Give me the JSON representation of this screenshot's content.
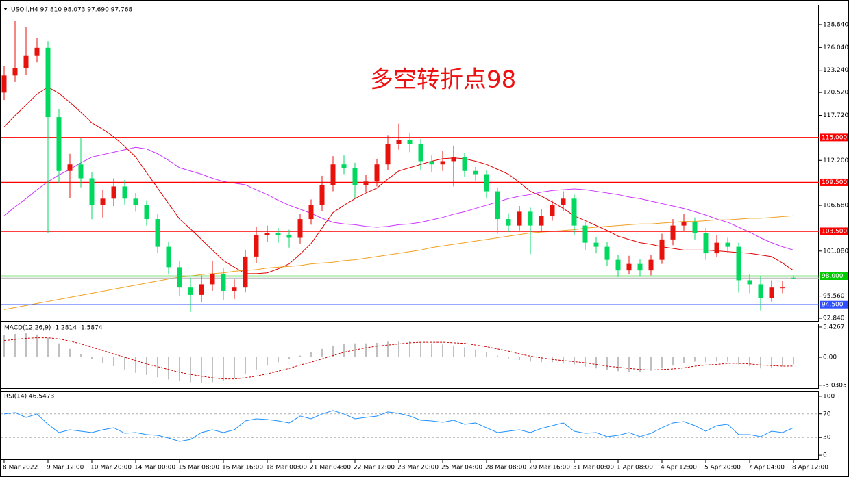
{
  "chart_data": [
    {
      "type": "candlestick",
      "title": "USOil,H4 97.810 98.073 97.690 97.768",
      "annotation": "多空转折点98",
      "categories": [
        "8 Mar 2022",
        null,
        null,
        null,
        "9 Mar 12:00",
        null,
        null,
        null,
        "10 Mar 20:00",
        null,
        null,
        null,
        "14 Mar 00:00",
        null,
        null,
        null,
        "15 Mar 08:00",
        null,
        null,
        null,
        "16 Mar 16:00",
        null,
        null,
        null,
        "18 Mar 00:00",
        null,
        null,
        null,
        "21 Mar 04:00",
        null,
        null,
        null,
        "22 Mar 12:00",
        null,
        null,
        null,
        "23 Mar 20:00",
        null,
        null,
        null,
        "25 Mar 04:00",
        null,
        null,
        null,
        "28 Mar 08:00",
        null,
        null,
        null,
        "29 Mar 16:00",
        null,
        null,
        null,
        "31 Mar 00:00",
        null,
        null,
        null,
        "1 Apr 08:00",
        null,
        null,
        null,
        "4 Apr 12:00",
        null,
        null,
        null,
        "5 Apr 20:00",
        null,
        null,
        null,
        "7 Apr 04:00",
        null,
        null,
        null,
        "8 Apr 12:00"
      ],
      "open": [
        120.5,
        122.6,
        123.5,
        125.0,
        126.0,
        117.5,
        110.9,
        111.7,
        110.0,
        106.7,
        107.5,
        109.0,
        107.5,
        106.7,
        105.0,
        101.6,
        99.1,
        96.6,
        95.7,
        97.0,
        98.3,
        96.2,
        96.6,
        100.4,
        103.0,
        103.3,
        103.0,
        102.7,
        105.0,
        106.7,
        109.2,
        111.7,
        111.3,
        109.2,
        109.6,
        111.7,
        114.2,
        114.7,
        114.2,
        112.1,
        111.7,
        112.1,
        112.6,
        110.9,
        110.5,
        108.4,
        105.0,
        104.2,
        105.9,
        104.2,
        105.4,
        106.7,
        107.5,
        104.2,
        102.1,
        101.6,
        100.0,
        98.7,
        99.5,
        98.7,
        100.0,
        102.5,
        104.2,
        104.6,
        103.3,
        100.8,
        102.1,
        101.6,
        97.5,
        97.0,
        95.3,
        96.6,
        97.81
      ],
      "high": [
        123.8,
        129.3,
        128.5,
        127.2,
        126.8,
        118.5,
        113.0,
        115.0,
        110.8,
        108.6,
        110.0,
        109.8,
        108.2,
        107.3,
        105.6,
        102.2,
        99.8,
        97.8,
        98.1,
        99.9,
        99.0,
        97.6,
        101.2,
        104.0,
        104.2,
        103.9,
        103.7,
        105.6,
        107.4,
        110.3,
        112.7,
        112.8,
        111.9,
        110.4,
        112.4,
        115.3,
        116.7,
        115.6,
        114.8,
        112.8,
        113.4,
        114.0,
        113.1,
        111.4,
        111.0,
        108.9,
        105.7,
        106.6,
        106.4,
        106.2,
        107.3,
        108.4,
        108.0,
        104.6,
        102.8,
        102.2,
        100.6,
        100.5,
        100.1,
        100.6,
        103.2,
        105.0,
        105.6,
        105.2,
        103.9,
        103.0,
        102.7,
        102.1,
        98.3,
        98.0,
        97.5,
        97.4,
        98.073
      ],
      "low": [
        119.6,
        121.8,
        122.7,
        124.2,
        103.3,
        109.4,
        107.6,
        108.9,
        105.0,
        105.2,
        106.6,
        106.8,
        105.9,
        104.2,
        100.8,
        98.2,
        95.6,
        93.6,
        94.8,
        96.2,
        95.1,
        95.2,
        96.0,
        99.6,
        102.2,
        102.1,
        101.5,
        102.0,
        104.3,
        106.0,
        108.4,
        110.5,
        107.5,
        108.3,
        109.0,
        111.0,
        113.5,
        113.2,
        111.0,
        110.7,
        110.9,
        109.0,
        110.2,
        109.7,
        107.5,
        103.2,
        103.4,
        103.6,
        100.7,
        103.5,
        104.8,
        106.0,
        103.0,
        101.2,
        100.8,
        99.3,
        97.9,
        98.2,
        98.0,
        98.1,
        99.5,
        101.8,
        103.6,
        102.5,
        100.0,
        100.3,
        100.9,
        96.0,
        95.9,
        93.8,
        94.9,
        95.9,
        97.69
      ],
      "close": [
        122.6,
        123.5,
        125.0,
        126.0,
        117.5,
        110.9,
        111.7,
        110.0,
        106.7,
        107.5,
        109.0,
        107.5,
        106.7,
        105.0,
        101.6,
        99.1,
        96.6,
        95.7,
        97.0,
        98.3,
        96.2,
        96.6,
        100.4,
        103.0,
        103.3,
        103.0,
        102.7,
        105.0,
        106.7,
        109.2,
        111.7,
        111.3,
        109.2,
        109.6,
        111.7,
        114.2,
        114.7,
        114.2,
        112.1,
        111.7,
        112.1,
        112.6,
        110.9,
        110.5,
        108.4,
        105.0,
        104.2,
        105.9,
        104.2,
        105.4,
        106.7,
        107.5,
        104.2,
        102.1,
        101.6,
        100.0,
        98.7,
        99.5,
        98.7,
        100.0,
        102.5,
        104.2,
        104.6,
        103.3,
        100.8,
        102.1,
        101.6,
        97.5,
        97.0,
        95.3,
        96.6,
        96.6,
        97.768
      ],
      "up_color": "#e8120c",
      "down_color": "#00d860",
      "price_line_color": "#b0b0b0",
      "series": [
        {
          "color": "#e00000",
          "values": [
            116.3,
            117.7,
            119.0,
            120.3,
            121.2,
            120.4,
            119.3,
            118.1,
            116.8,
            116.0,
            115.1,
            113.9,
            112.6,
            110.7,
            108.8,
            106.9,
            105.0,
            103.8,
            102.5,
            101.2,
            99.9,
            99.1,
            98.3,
            98.3,
            98.4,
            98.9,
            99.5,
            100.7,
            102.0,
            103.9,
            105.8,
            106.7,
            107.5,
            108.2,
            108.8,
            109.9,
            110.9,
            111.3,
            111.7,
            112.1,
            112.4,
            112.5,
            112.4,
            112.1,
            111.7,
            111.1,
            110.5,
            109.5,
            108.4,
            107.8,
            107.1,
            106.3,
            105.4,
            104.8,
            104.2,
            103.6,
            102.9,
            102.5,
            102.1,
            101.9,
            101.6,
            101.4,
            101.2,
            101.2,
            101.2,
            101.1,
            101.0,
            100.9,
            100.8,
            100.6,
            100.4,
            99.6,
            98.7
          ]
        },
        {
          "color": "#cc33ff",
          "values": [
            105.4,
            106.5,
            107.5,
            108.6,
            109.6,
            110.4,
            111.1,
            111.9,
            112.6,
            112.9,
            113.2,
            113.5,
            113.8,
            113.6,
            113.0,
            112.2,
            111.3,
            110.9,
            110.5,
            110.0,
            109.6,
            109.4,
            109.2,
            108.6,
            108.0,
            107.3,
            106.7,
            106.2,
            105.7,
            105.1,
            104.6,
            104.4,
            104.3,
            104.1,
            104.0,
            104.1,
            104.3,
            104.4,
            104.6,
            104.9,
            105.2,
            105.6,
            105.9,
            106.3,
            106.7,
            107.1,
            107.5,
            107.8,
            108.0,
            108.3,
            108.5,
            108.6,
            108.7,
            108.6,
            108.4,
            108.2,
            108.0,
            107.7,
            107.5,
            107.2,
            106.9,
            106.6,
            106.3,
            105.9,
            105.5,
            105.0,
            104.6,
            104.0,
            103.4,
            102.7,
            102.1,
            101.6,
            101.2
          ]
        },
        {
          "color": "#f0a020",
          "values": [
            93.9,
            94.15,
            94.4,
            94.65,
            94.9,
            95.15,
            95.4,
            95.65,
            95.9,
            96.15,
            96.4,
            96.65,
            96.9,
            97.15,
            97.4,
            97.65,
            97.9,
            98.0,
            98.2,
            98.3,
            98.4,
            98.6,
            98.7,
            98.8,
            99.0,
            99.1,
            99.2,
            99.3,
            99.5,
            99.6,
            99.7,
            99.9,
            100.0,
            100.2,
            100.4,
            100.6,
            100.8,
            101.0,
            101.2,
            101.5,
            101.7,
            101.9,
            102.1,
            102.3,
            102.5,
            102.7,
            102.9,
            103.1,
            103.3,
            103.4,
            103.5,
            103.6,
            103.7,
            103.9,
            104.0,
            104.1,
            104.2,
            104.3,
            104.4,
            104.4,
            104.5,
            104.6,
            104.7,
            104.7,
            104.8,
            104.9,
            104.9,
            105.0,
            105.1,
            105.1,
            105.2,
            105.3,
            105.4
          ]
        }
      ],
      "levels": [
        {
          "value": 115.0,
          "label": "115.000",
          "color": "#ff0000"
        },
        {
          "value": 109.5,
          "label": "109.500",
          "color": "#ff0000"
        },
        {
          "value": 103.5,
          "label": "103.500",
          "color": "#ff0000"
        },
        {
          "value": 98.0,
          "label": "98.000",
          "color": "#00cc00"
        },
        {
          "value": 94.5,
          "label": "94.500",
          "color": "#3050ff"
        }
      ],
      "ylim": [
        92.42,
        131.27
      ],
      "yticks": [
        {
          "value": 128.84,
          "label": "128.840"
        },
        {
          "value": 126.04,
          "label": "126.040"
        },
        {
          "value": 123.24,
          "label": "123.240"
        },
        {
          "value": 120.52,
          "label": "120.520"
        },
        {
          "value": 117.72,
          "label": "117.720"
        },
        {
          "value": 112.2,
          "label": "112.200"
        },
        {
          "value": 106.68,
          "label": "106.680"
        },
        {
          "value": 101.08,
          "label": "101.080"
        },
        {
          "value": 95.56,
          "label": "95.560"
        },
        {
          "value": 92.84,
          "label": "92.840"
        }
      ]
    },
    {
      "type": "macd",
      "title": "MACD(12,26,9) -1.2814 -1.5874",
      "series": [
        {
          "color": "#c0c0c0",
          "values": [
            4.0,
            4.2,
            4.3,
            4.1,
            3.5,
            2.5,
            1.5,
            0.6,
            -0.3,
            -1.0,
            -1.6,
            -2.2,
            -2.8,
            -3.2,
            -3.6,
            -4.0,
            -4.3,
            -4.5,
            -4.6,
            -4.5,
            -4.3,
            -3.8,
            -3.0,
            -2.2,
            -1.5,
            -0.9,
            -0.3,
            0.3,
            0.9,
            1.5,
            2.1,
            2.4,
            2.5,
            2.5,
            2.6,
            2.8,
            2.9,
            2.9,
            2.7,
            2.5,
            2.3,
            2.1,
            1.8,
            1.4,
            0.9,
            0.3,
            -0.2,
            -0.5,
            -0.8,
            -0.9,
            -0.9,
            -1.0,
            -1.3,
            -1.7,
            -2.0,
            -2.3,
            -2.5,
            -2.6,
            -2.6,
            -2.4,
            -2.0,
            -1.5,
            -1.0,
            -0.8,
            -0.9,
            -0.8,
            -0.8,
            -1.3,
            -1.6,
            -2.0,
            -1.9,
            -1.6,
            -1.2814
          ]
        },
        {
          "color": "#cc0000",
          "values": [
            3.0,
            3.2,
            3.4,
            3.5,
            3.5,
            3.3,
            2.9,
            2.4,
            1.8,
            1.2,
            0.6,
            0.0,
            -0.6,
            -1.2,
            -1.7,
            -2.2,
            -2.7,
            -3.1,
            -3.4,
            -3.7,
            -3.9,
            -3.9,
            -3.7,
            -3.4,
            -3.0,
            -2.5,
            -2.0,
            -1.4,
            -0.9,
            -0.3,
            0.3,
            0.9,
            1.3,
            1.7,
            2.0,
            2.2,
            2.4,
            2.6,
            2.7,
            2.7,
            2.7,
            2.6,
            2.5,
            2.2,
            1.9,
            1.5,
            1.1,
            0.6,
            0.2,
            -0.1,
            -0.4,
            -0.6,
            -0.8,
            -1.0,
            -1.3,
            -1.6,
            -1.8,
            -2.0,
            -2.2,
            -2.3,
            -2.2,
            -2.1,
            -1.9,
            -1.6,
            -1.4,
            -1.3,
            -1.1,
            -1.1,
            -1.2,
            -1.4,
            -1.5,
            -1.6,
            -1.5874
          ]
        }
      ],
      "ylim": [
        -5.67,
        6.04
      ],
      "yticks": [
        5.4267,
        {
          "value": 0,
          "label": "0.00"
        },
        -5.0305
      ]
    },
    {
      "type": "line",
      "title": "RSI(14) 46.5473",
      "color": "#1e90ff",
      "values": [
        69.8,
        72.1,
        64.0,
        69.8,
        52.3,
        38.4,
        43.0,
        40.7,
        38.4,
        43.0,
        46.5,
        37.2,
        38.4,
        34.9,
        33.7,
        29.1,
        23.3,
        26.7,
        38.4,
        43.0,
        38.4,
        43.0,
        58.1,
        61.6,
        60.5,
        58.1,
        54.7,
        66.3,
        61.6,
        69.8,
        75.6,
        69.8,
        61.6,
        64.0,
        66.3,
        73.3,
        70.9,
        66.3,
        59.3,
        58.1,
        55.8,
        59.3,
        52.3,
        54.7,
        46.5,
        38.4,
        40.7,
        43.0,
        38.4,
        45.3,
        50.0,
        54.7,
        40.7,
        37.2,
        38.4,
        31.4,
        33.7,
        38.4,
        31.4,
        37.2,
        46.5,
        54.7,
        57.0,
        50.0,
        40.7,
        50.0,
        52.3,
        34.9,
        34.9,
        31.4,
        40.7,
        38.4,
        46.5473
      ],
      "levels": [
        70,
        30
      ],
      "ylim": [
        -8,
        108
      ],
      "yticks": [
        100,
        70,
        30,
        0
      ]
    }
  ]
}
